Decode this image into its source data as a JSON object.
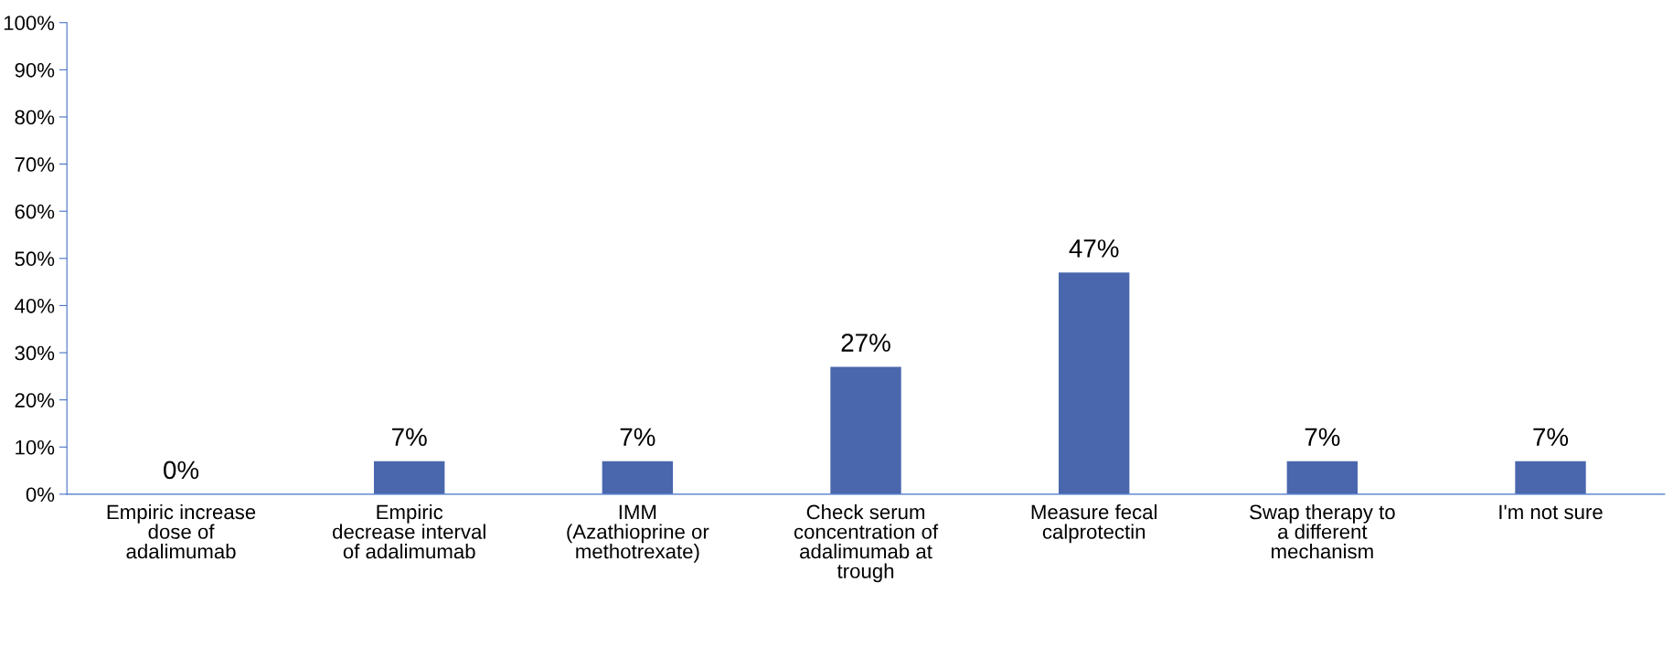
{
  "chart_data": {
    "type": "bar",
    "categories": [
      "Empiric increase\ndose of\nadalimumab",
      "Empiric\ndecrease interval\nof adalimumab",
      "IMM\n(Azathioprine or\nmethotrexate)",
      "Check serum\nconcentration of\nadalimumab at\ntrough",
      "Measure fecal\ncalprotectin",
      "Swap therapy to\na different\nmechanism",
      "I'm not sure"
    ],
    "values": [
      0,
      7,
      7,
      27,
      47,
      7,
      7
    ],
    "value_labels": [
      "0%",
      "7%",
      "7%",
      "27%",
      "47%",
      "7%",
      "7%"
    ],
    "color": "#4a67ad",
    "ylim": [
      0,
      100
    ],
    "yticks": [
      {
        "value": 0,
        "label": "0%"
      },
      {
        "value": 10,
        "label": "10%"
      },
      {
        "value": 20,
        "label": "20%"
      },
      {
        "value": 30,
        "label": "30%"
      },
      {
        "value": 40,
        "label": "40%"
      },
      {
        "value": 50,
        "label": "50%"
      },
      {
        "value": 60,
        "label": "60%"
      },
      {
        "value": 70,
        "label": "70%"
      },
      {
        "value": 80,
        "label": "80%"
      },
      {
        "value": 90,
        "label": "90%"
      },
      {
        "value": 100,
        "label": "100%"
      }
    ],
    "grid": false
  }
}
